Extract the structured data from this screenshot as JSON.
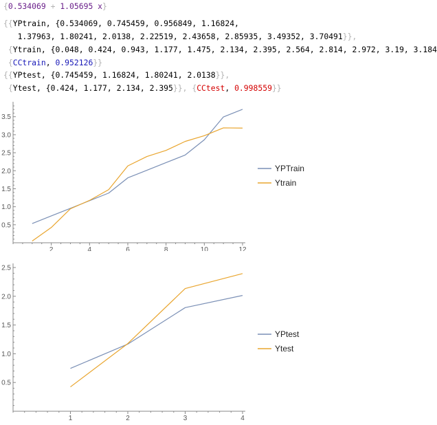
{
  "output1": {
    "open": "{",
    "a": "0.534069",
    "plus": " + ",
    "b": "1.05695",
    "var": " x",
    "close": "}"
  },
  "output2": {
    "line1_open": "{{",
    "line1_key": "YPtrain",
    "line1_vals": "{0.534069, 0.745459, 0.956849, 1.16824,",
    "line2_vals": "1.37963, 1.80241, 2.0138, 2.22519, 2.43658, 2.85935, 3.49352, 3.70491",
    "line2_close": "}},",
    "line3_open": "{",
    "line3_key": "Ytrain",
    "line3_vals": "{0.048, 0.424, 0.943, 1.177, 1.475, 2.134, 2.395, 2.564, 2.814, 2.972, 3.19, 3.184",
    "line3_close": "}},",
    "line4_open": "{",
    "line4_key": "CCtrain",
    "line4_val": "0.952126",
    "line4_close": "}}"
  },
  "output3": {
    "line1_open": "{{",
    "line1_key": "YPtest",
    "line1_vals": "{0.745459, 1.16824, 1.80241, 2.0138",
    "line1_close": "}},",
    "line2_open": "{",
    "line2_key": "Ytest",
    "line2_vals": "{0.424, 1.177, 2.134, 2.395",
    "line2_close": "}},",
    "line2_cc_open": "{",
    "line2_cc_key": "CCtest",
    "line2_cc_val": "0.998559",
    "line2_cc_close": "}}"
  },
  "colors": {
    "series_blue": "#7a8fb5",
    "series_orange": "#e9a52e",
    "axis": "#888888"
  },
  "chart_data": [
    {
      "type": "line",
      "x": [
        1,
        2,
        3,
        4,
        5,
        6,
        7,
        8,
        9,
        10,
        11,
        12
      ],
      "xticks": [
        "2",
        "4",
        "6",
        "8",
        "10",
        "12"
      ],
      "yticks": [
        "0.5",
        "1.0",
        "1.5",
        "2.0",
        "2.5",
        "3.0",
        "3.5"
      ],
      "series": [
        {
          "name": "YPTrain",
          "color": "#7a8fb5",
          "values": [
            0.534069,
            0.745459,
            0.956849,
            1.16824,
            1.37963,
            1.80241,
            2.0138,
            2.22519,
            2.43658,
            2.85935,
            3.49352,
            3.70491
          ]
        },
        {
          "name": "Ytrain",
          "color": "#e9a52e",
          "values": [
            0.048,
            0.424,
            0.943,
            1.177,
            1.475,
            2.134,
            2.395,
            2.564,
            2.814,
            2.972,
            3.19,
            3.184
          ]
        }
      ],
      "xlim": [
        0,
        12
      ],
      "ylim": [
        0,
        3.8
      ],
      "legend": "right"
    },
    {
      "type": "line",
      "x": [
        1,
        2,
        3,
        4
      ],
      "xticks": [
        "1",
        "2",
        "3",
        "4"
      ],
      "yticks": [
        "0.5",
        "1.0",
        "1.5",
        "2.0",
        "2.5"
      ],
      "series": [
        {
          "name": "YPtest",
          "color": "#7a8fb5",
          "values": [
            0.745459,
            1.16824,
            1.80241,
            2.0138
          ]
        },
        {
          "name": "Ytest",
          "color": "#e9a52e",
          "values": [
            0.424,
            1.177,
            2.134,
            2.395
          ]
        }
      ],
      "xlim": [
        0,
        4
      ],
      "ylim": [
        0,
        2.5
      ],
      "legend": "right"
    }
  ]
}
